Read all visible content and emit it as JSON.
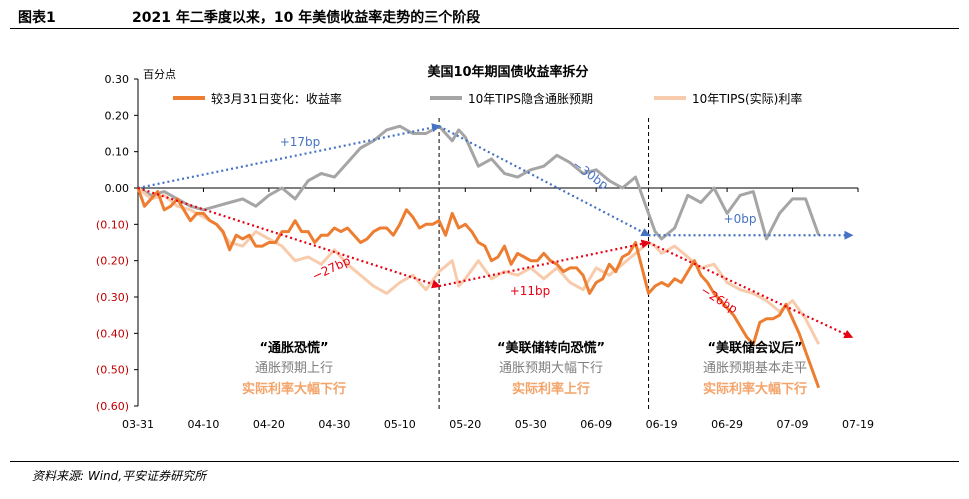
{
  "header": {
    "figure_label": "图表1",
    "figure_title": "2021 年二季度以来，10 年美债收益率走势的三个阶段"
  },
  "footer": {
    "source": "资料来源: Wind,平安证券研究所"
  },
  "colors": {
    "yield": "#ED7D31",
    "breakeven": "#A5A5A5",
    "real": "#F8CBAD",
    "blue_arrow": "#4472C4",
    "red_arrow": "#E60012",
    "negative_tick": "#C00000",
    "gray_text": "#7F7F7F",
    "orange_text": "#F4A46A"
  },
  "chart_data": {
    "type": "line",
    "title": "美国10年期国债收益率拆分",
    "ylabel": "百分点",
    "ylim": [
      -0.6,
      0.3
    ],
    "yticks": [
      0.3,
      0.2,
      0.1,
      0.0,
      -0.1,
      -0.2,
      -0.3,
      -0.4,
      -0.5,
      -0.6
    ],
    "ytick_labels": [
      "0.30",
      "0.20",
      "0.10",
      "0.00",
      "(0.10)",
      "(0.20)",
      "(0.30)",
      "(0.40)",
      "(0.50)",
      "(0.60)"
    ],
    "x_tick_labels": [
      "03-31",
      "04-10",
      "04-20",
      "04-30",
      "05-10",
      "05-20",
      "05-30",
      "06-09",
      "06-19",
      "06-29",
      "07-09",
      "07-19"
    ],
    "x_range_days": [
      0,
      110
    ],
    "legend_position": "top",
    "series": [
      {
        "name": "较3月31日变化：收益率",
        "values": [
          [
            0,
            0.0
          ],
          [
            1,
            -0.05
          ],
          [
            2,
            -0.03
          ],
          [
            3,
            -0.01
          ],
          [
            4,
            -0.06
          ],
          [
            5,
            -0.05
          ],
          [
            6,
            -0.03
          ],
          [
            7,
            -0.06
          ],
          [
            8,
            -0.09
          ],
          [
            9,
            -0.07
          ],
          [
            10,
            -0.07
          ],
          [
            11,
            -0.09
          ],
          [
            12,
            -0.1
          ],
          [
            13,
            -0.12
          ],
          [
            14,
            -0.17
          ],
          [
            15,
            -0.13
          ],
          [
            16,
            -0.14
          ],
          [
            17,
            -0.13
          ],
          [
            18,
            -0.16
          ],
          [
            19,
            -0.16
          ],
          [
            20,
            -0.15
          ],
          [
            21,
            -0.15
          ],
          [
            22,
            -0.12
          ],
          [
            23,
            -0.12
          ],
          [
            24,
            -0.09
          ],
          [
            25,
            -0.12
          ],
          [
            26,
            -0.12
          ],
          [
            27,
            -0.15
          ],
          [
            28,
            -0.13
          ],
          [
            29,
            -0.13
          ],
          [
            30,
            -0.11
          ],
          [
            31,
            -0.12
          ],
          [
            32,
            -0.11
          ],
          [
            33,
            -0.13
          ],
          [
            34,
            -0.15
          ],
          [
            35,
            -0.14
          ],
          [
            36,
            -0.12
          ],
          [
            37,
            -0.11
          ],
          [
            38,
            -0.11
          ],
          [
            39,
            -0.13
          ],
          [
            40,
            -0.1
          ],
          [
            41,
            -0.06
          ],
          [
            42,
            -0.08
          ],
          [
            43,
            -0.11
          ],
          [
            44,
            -0.1
          ],
          [
            45,
            -0.1
          ],
          [
            46,
            -0.09
          ],
          [
            47,
            -0.13
          ],
          [
            48,
            -0.07
          ],
          [
            49,
            -0.11
          ],
          [
            50,
            -0.1
          ],
          [
            51,
            -0.12
          ],
          [
            52,
            -0.15
          ],
          [
            53,
            -0.16
          ],
          [
            54,
            -0.2
          ],
          [
            55,
            -0.19
          ],
          [
            56,
            -0.16
          ],
          [
            57,
            -0.21
          ],
          [
            58,
            -0.18
          ],
          [
            59,
            -0.19
          ],
          [
            60,
            -0.2
          ],
          [
            61,
            -0.2
          ],
          [
            62,
            -0.18
          ],
          [
            63,
            -0.2
          ],
          [
            64,
            -0.21
          ],
          [
            65,
            -0.23
          ],
          [
            66,
            -0.22
          ],
          [
            67,
            -0.22
          ],
          [
            68,
            -0.24
          ],
          [
            69,
            -0.29
          ],
          [
            70,
            -0.26
          ],
          [
            71,
            -0.25
          ],
          [
            72,
            -0.21
          ],
          [
            73,
            -0.23
          ],
          [
            74,
            -0.19
          ],
          [
            75,
            -0.18
          ],
          [
            76,
            -0.15
          ],
          [
            77,
            -0.22
          ],
          [
            78,
            -0.29
          ],
          [
            79,
            -0.27
          ],
          [
            80,
            -0.26
          ],
          [
            81,
            -0.27
          ],
          [
            82,
            -0.25
          ],
          [
            83,
            -0.26
          ],
          [
            84,
            -0.23
          ],
          [
            85,
            -0.2
          ],
          [
            86,
            -0.24
          ],
          [
            87,
            -0.26
          ],
          [
            88,
            -0.29
          ],
          [
            89,
            -0.31
          ],
          [
            90,
            -0.33
          ],
          [
            91,
            -0.35
          ],
          [
            92,
            -0.38
          ],
          [
            93,
            -0.41
          ],
          [
            94,
            -0.43
          ],
          [
            95,
            -0.37
          ],
          [
            96,
            -0.36
          ],
          [
            97,
            -0.36
          ],
          [
            98,
            -0.35
          ],
          [
            99,
            -0.32
          ],
          [
            100,
            -0.36
          ],
          [
            101,
            -0.4
          ],
          [
            102,
            -0.45
          ],
          [
            103,
            -0.5
          ],
          [
            104,
            -0.55
          ]
        ]
      },
      {
        "name": "10年TIPS隐含通胀预期",
        "values": [
          [
            0,
            0.0
          ],
          [
            2,
            -0.02
          ],
          [
            4,
            -0.01
          ],
          [
            6,
            -0.03
          ],
          [
            8,
            -0.05
          ],
          [
            10,
            -0.06
          ],
          [
            12,
            -0.05
          ],
          [
            14,
            -0.04
          ],
          [
            16,
            -0.03
          ],
          [
            18,
            -0.05
          ],
          [
            20,
            -0.02
          ],
          [
            22,
            0.0
          ],
          [
            24,
            -0.03
          ],
          [
            26,
            0.02
          ],
          [
            28,
            0.04
          ],
          [
            30,
            0.03
          ],
          [
            32,
            0.07
          ],
          [
            34,
            0.11
          ],
          [
            36,
            0.13
          ],
          [
            38,
            0.16
          ],
          [
            40,
            0.17
          ],
          [
            42,
            0.15
          ],
          [
            44,
            0.15
          ],
          [
            46,
            0.17
          ],
          [
            48,
            0.13
          ],
          [
            49,
            0.16
          ],
          [
            50,
            0.14
          ],
          [
            52,
            0.06
          ],
          [
            54,
            0.08
          ],
          [
            56,
            0.04
          ],
          [
            58,
            0.03
          ],
          [
            60,
            0.05
          ],
          [
            62,
            0.06
          ],
          [
            64,
            0.09
          ],
          [
            66,
            0.07
          ],
          [
            68,
            0.04
          ],
          [
            70,
            0.05
          ],
          [
            72,
            0.02
          ],
          [
            74,
            0.0
          ],
          [
            76,
            0.03
          ],
          [
            78,
            -0.07
          ],
          [
            79,
            -0.12
          ],
          [
            80,
            -0.14
          ],
          [
            82,
            -0.11
          ],
          [
            84,
            -0.02
          ],
          [
            86,
            -0.04
          ],
          [
            88,
            0.0
          ],
          [
            90,
            -0.07
          ],
          [
            92,
            -0.02
          ],
          [
            94,
            -0.01
          ],
          [
            96,
            -0.14
          ],
          [
            98,
            -0.07
          ],
          [
            100,
            -0.03
          ],
          [
            102,
            -0.03
          ],
          [
            104,
            -0.13
          ]
        ]
      },
      {
        "name": "10年TIPS(实际)利率",
        "values": [
          [
            0,
            0.0
          ],
          [
            2,
            -0.03
          ],
          [
            4,
            -0.02
          ],
          [
            6,
            -0.05
          ],
          [
            8,
            -0.06
          ],
          [
            10,
            -0.08
          ],
          [
            12,
            -0.1
          ],
          [
            14,
            -0.15
          ],
          [
            16,
            -0.16
          ],
          [
            18,
            -0.12
          ],
          [
            20,
            -0.14
          ],
          [
            22,
            -0.16
          ],
          [
            24,
            -0.2
          ],
          [
            26,
            -0.19
          ],
          [
            28,
            -0.21
          ],
          [
            30,
            -0.17
          ],
          [
            32,
            -0.21
          ],
          [
            34,
            -0.24
          ],
          [
            36,
            -0.27
          ],
          [
            38,
            -0.29
          ],
          [
            40,
            -0.26
          ],
          [
            42,
            -0.24
          ],
          [
            44,
            -0.28
          ],
          [
            46,
            -0.23
          ],
          [
            48,
            -0.2
          ],
          [
            49,
            -0.27
          ],
          [
            50,
            -0.25
          ],
          [
            52,
            -0.2
          ],
          [
            54,
            -0.25
          ],
          [
            56,
            -0.23
          ],
          [
            58,
            -0.24
          ],
          [
            60,
            -0.22
          ],
          [
            62,
            -0.25
          ],
          [
            64,
            -0.22
          ],
          [
            66,
            -0.26
          ],
          [
            68,
            -0.28
          ],
          [
            70,
            -0.22
          ],
          [
            72,
            -0.24
          ],
          [
            74,
            -0.21
          ],
          [
            76,
            -0.18
          ],
          [
            78,
            -0.15
          ],
          [
            79,
            -0.16
          ],
          [
            80,
            -0.18
          ],
          [
            82,
            -0.16
          ],
          [
            84,
            -0.19
          ],
          [
            86,
            -0.22
          ],
          [
            88,
            -0.21
          ],
          [
            90,
            -0.26
          ],
          [
            92,
            -0.28
          ],
          [
            94,
            -0.29
          ],
          [
            96,
            -0.31
          ],
          [
            98,
            -0.34
          ],
          [
            100,
            -0.31
          ],
          [
            102,
            -0.36
          ],
          [
            104,
            -0.43
          ]
        ]
      }
    ],
    "arrows": [
      {
        "label": "+17bp",
        "color": "blue",
        "from": [
          0,
          0.0
        ],
        "to": [
          46,
          0.17
        ]
      },
      {
        "label": "−30bp",
        "color": "blue",
        "from": [
          46,
          0.17
        ],
        "to": [
          78,
          -0.13
        ]
      },
      {
        "label": "+0bp",
        "color": "blue",
        "from": [
          78,
          -0.13
        ],
        "to": [
          109,
          -0.13
        ]
      },
      {
        "label": "−27bp",
        "color": "red",
        "from": [
          0,
          0.0
        ],
        "to": [
          46,
          -0.27
        ]
      },
      {
        "label": "+11bp",
        "color": "red",
        "from": [
          46,
          -0.27
        ],
        "to": [
          78,
          -0.15
        ]
      },
      {
        "label": "−26bp",
        "color": "red",
        "from": [
          78,
          -0.15
        ],
        "to": [
          109,
          -0.41
        ]
      }
    ],
    "phase_dividers_x": [
      46,
      78
    ],
    "phases": [
      {
        "title": "“通胀恐慌”",
        "line1": "通胀预期上行",
        "line2": "实际利率大幅下行"
      },
      {
        "title": "“美联储转向恐慌”",
        "line1": "通胀预期大幅下行",
        "line2": "实际利率上行"
      },
      {
        "title": "“美联储会议后”",
        "line1": "通胀预期基本走平",
        "line2": "实际利率大幅下行"
      }
    ]
  }
}
